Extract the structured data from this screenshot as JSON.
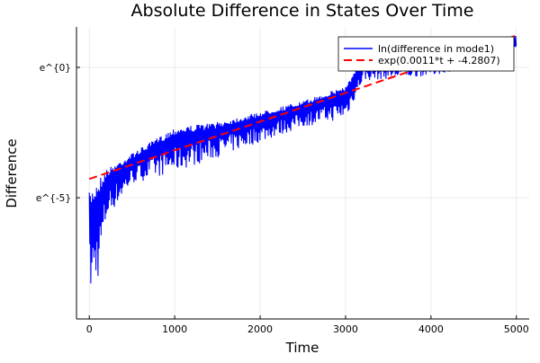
{
  "chart_data": {
    "type": "line",
    "title": "Absolute Difference in States Over Time",
    "xlabel": "Time",
    "ylabel": "Difference",
    "xlim": [
      -150,
      5150
    ],
    "ylim": [
      -9.65,
      1.55
    ],
    "yscale": "log (natural), values shown as ln",
    "grid": true,
    "legend_position": "top-right",
    "x_ticks": [
      {
        "value": 0,
        "label": "0"
      },
      {
        "value": 1000,
        "label": "1000"
      },
      {
        "value": 2000,
        "label": "2000"
      },
      {
        "value": 3000,
        "label": "3000"
      },
      {
        "value": 4000,
        "label": "4000"
      },
      {
        "value": 5000,
        "label": "5000"
      }
    ],
    "y_ticks": [
      {
        "value": 0,
        "label": "e^{0}"
      },
      {
        "value": -5,
        "label": "e^{-5}"
      }
    ],
    "series": [
      {
        "name": "ln(difference in mode1)",
        "color": "#0000ff",
        "style": "solid oscillating",
        "envelope_t": [
          0,
          100,
          200,
          500,
          1000,
          1500,
          2000,
          2500,
          3000,
          3200,
          4000,
          4900,
          5000
        ],
        "upper_ln": [
          -4.8,
          -4.3,
          -3.9,
          -3.3,
          -2.3,
          -2.1,
          -1.7,
          -1.3,
          -0.7,
          0.3,
          0.4,
          0.6,
          1.3
        ],
        "lower_ln": [
          -9.3,
          -8.5,
          -6.0,
          -4.6,
          -4.2,
          -3.6,
          -3.0,
          -2.4,
          -2.1,
          -0.6,
          -0.4,
          0.3,
          0.7
        ]
      },
      {
        "name": "exp(0.0011*t + -4.2807)",
        "color": "#ff0000",
        "style": "dashed",
        "slope": 0.0011,
        "intercept": -4.2807,
        "t_range": [
          0,
          5000
        ]
      }
    ]
  }
}
